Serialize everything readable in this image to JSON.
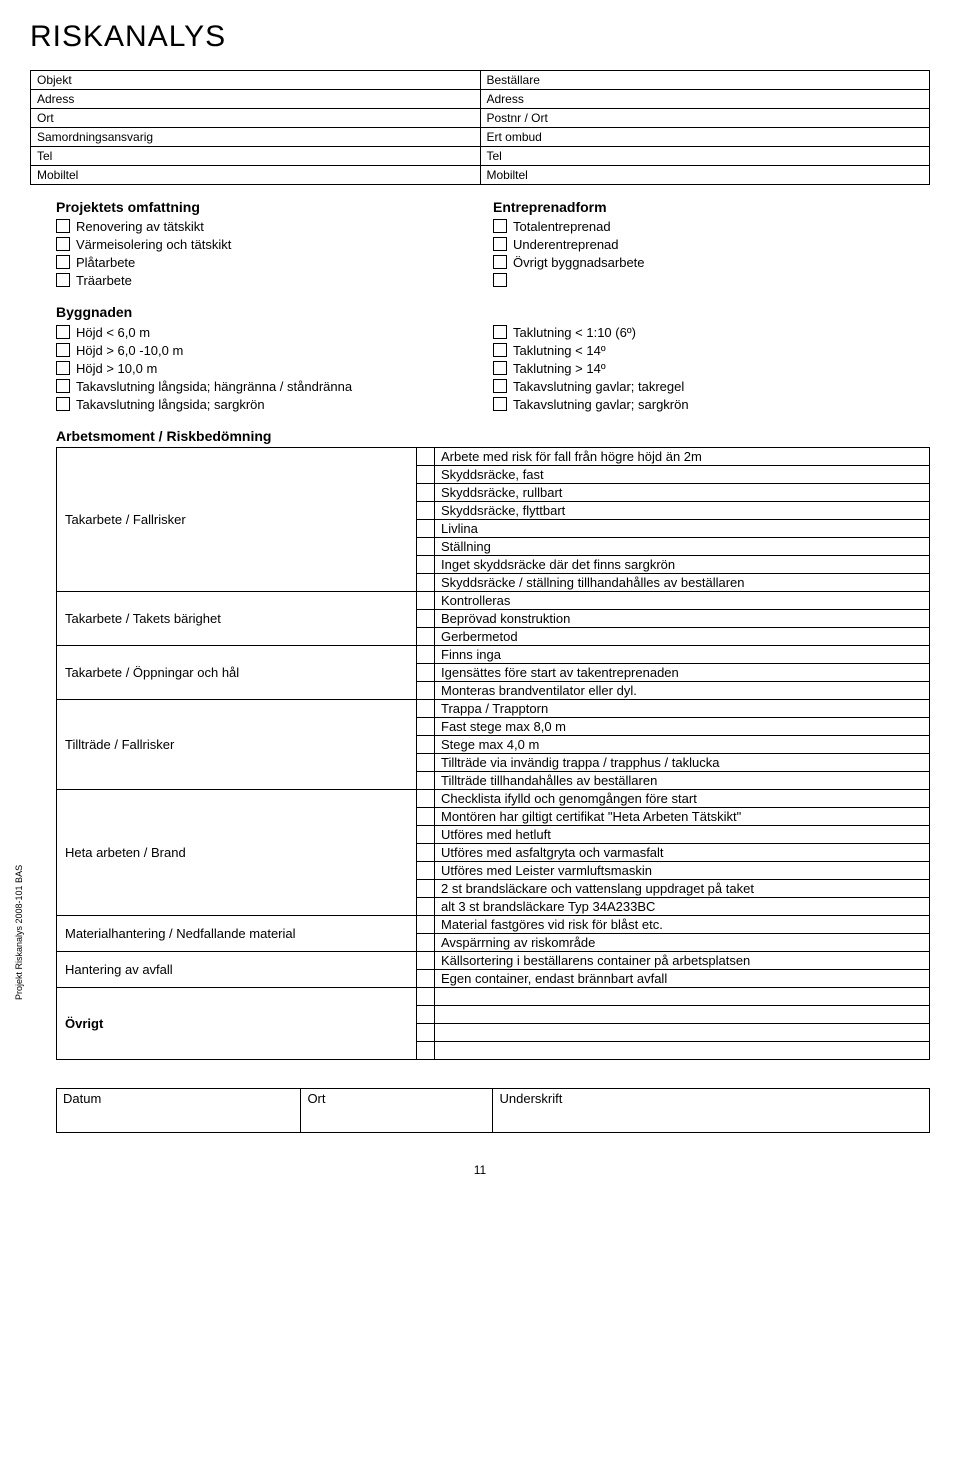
{
  "title": "RISKANALYS",
  "header_rows": [
    [
      "Objekt",
      "Beställare"
    ],
    [
      "Adress",
      "Adress"
    ],
    [
      "Ort",
      "Postnr / Ort"
    ],
    [
      "Samordningsansvarig",
      "Ert ombud"
    ],
    [
      "Tel",
      "Tel"
    ],
    [
      "Mobiltel",
      "Mobiltel"
    ]
  ],
  "scope": {
    "left_title": "Projektets omfattning",
    "left_items": [
      "Renovering av tätskikt",
      "Värmeisolering och tätskikt",
      "Plåtarbete",
      "Träarbete"
    ],
    "right_title": "Entreprenadform",
    "right_items": [
      "Totalentreprenad",
      "Underentreprenad",
      "Övrigt byggnadsarbete",
      ""
    ]
  },
  "building": {
    "title": "Byggnaden",
    "left_items": [
      "Höjd < 6,0 m",
      "Höjd > 6,0 -10,0 m",
      "Höjd > 10,0 m",
      "Takavslutning långsida; hängränna / ståndränna",
      "Takavslutning långsida; sargkrön"
    ],
    "right_items": [
      "Taklutning < 1:10  (6º)",
      "Taklutning < 14º",
      "Taklutning > 14º",
      "Takavslutning gavlar; takregel",
      "Takavslutning gavlar; sargkrön"
    ]
  },
  "risk": {
    "title": "Arbetsmoment / Riskbedömning",
    "groups": [
      {
        "category": "Takarbete / Fallrisker",
        "options": [
          "Arbete med risk för fall från högre höjd än 2m",
          "Skyddsräcke, fast",
          "Skyddsräcke, rullbart",
          "Skyddsräcke, flyttbart",
          "Livlina",
          "Ställning",
          "Inget skyddsräcke där det finns sargkrön",
          "Skyddsräcke / ställning tillhandahålles av beställaren"
        ]
      },
      {
        "category": "Takarbete / Takets bärighet",
        "options": [
          "Kontrolleras",
          "Beprövad konstruktion",
          "Gerbermetod"
        ]
      },
      {
        "category": "Takarbete / Öppningar och hål",
        "options": [
          "Finns inga",
          "Igensättes före start av takentreprenaden",
          "Monteras brandventilator eller dyl."
        ]
      },
      {
        "category": "Tillträde / Fallrisker",
        "options": [
          "Trappa / Trapptorn",
          "Fast stege max 8,0 m",
          "Stege max 4,0 m",
          "Tillträde via invändig trappa / trapphus / taklucka",
          "Tillträde tillhandahålles av beställaren"
        ]
      },
      {
        "category": "Heta arbeten / Brand",
        "options": [
          "Checklista ifylld och genomgången före start",
          "Montören har giltigt certifikat \"Heta Arbeten Tätskikt\"",
          "Utföres med hetluft",
          "Utföres med asfaltgryta och varmasfalt",
          "Utföres med Leister varmluftsmaskin",
          "2 st brandsläckare och vattenslang uppdraget på taket",
          "alt 3 st brandsläckare Typ 34A233BC"
        ]
      },
      {
        "category": "Materialhantering / Nedfallande material",
        "options": [
          "Material fastgöres vid risk för blåst etc.",
          "Avspärrning av riskområde"
        ]
      },
      {
        "category": "Hantering av avfall",
        "options": [
          "Källsortering i beställarens container på arbetsplatsen",
          "Egen container, endast brännbart avfall"
        ]
      },
      {
        "category": "Övrigt",
        "options": [
          "",
          "",
          "",
          ""
        ]
      }
    ]
  },
  "signature": {
    "datum": "Datum",
    "ort": "Ort",
    "underskrift": "Underskrift"
  },
  "side_text": "Projekt Riskanalys 2008-101 BAS",
  "page_number": "11"
}
